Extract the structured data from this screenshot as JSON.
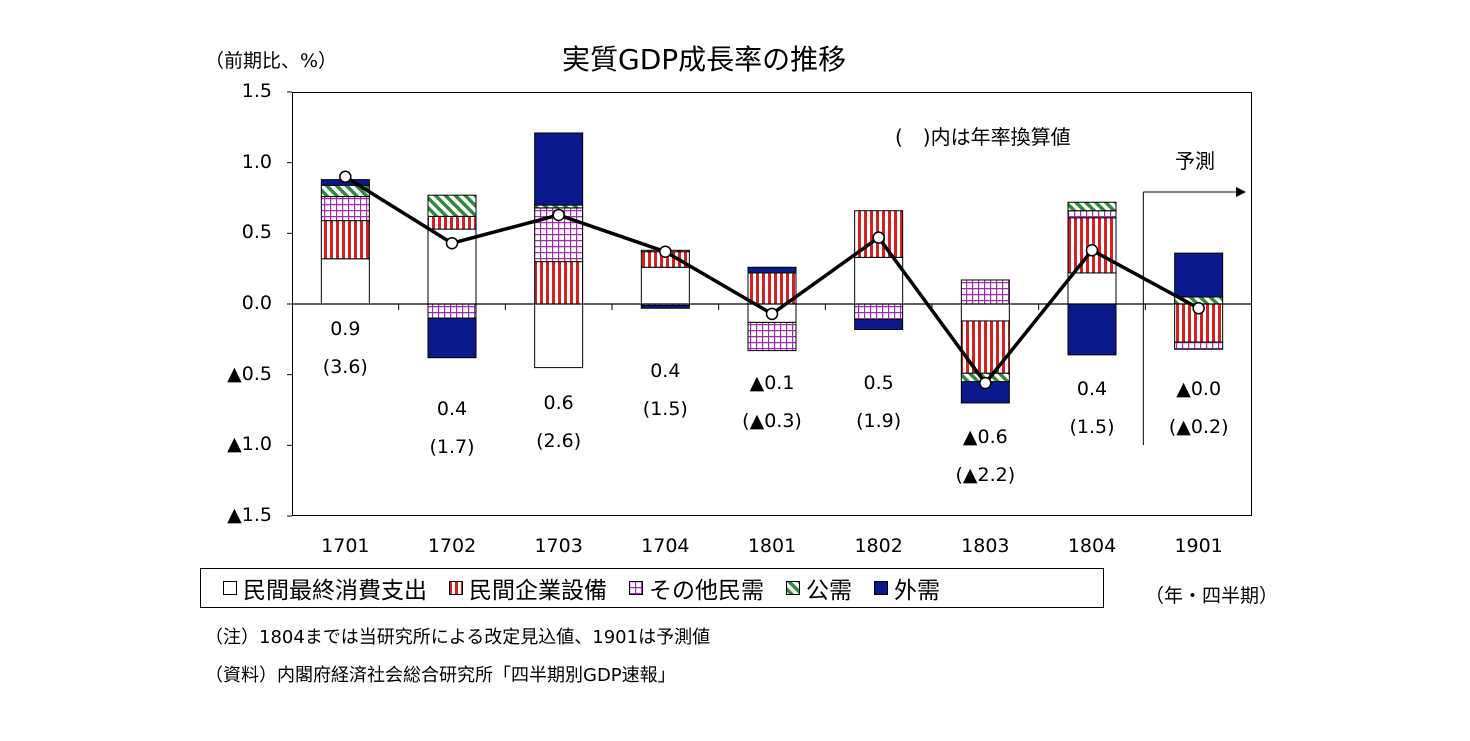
{
  "title": "実質GDP成長率の推移",
  "y_unit": "（前期比、%）",
  "annual_note": "(　)内は年率換算値",
  "forecast_label": "予測",
  "period_label": "（年・四半期）",
  "note_1": "（注）1804までは当研究所による改定見込値、1901は予測値",
  "note_2": "（資料）内閣府経済社会総合研究所「四半期別GDP速報」",
  "colors": {
    "consumption": "#ffffff",
    "investment": "#d62020",
    "other_private": "#9b2fae",
    "public": "#2e8b3e",
    "external": "#0a1a8c",
    "line": "#000000"
  },
  "chart_data": {
    "type": "bar",
    "subtype": "stacked bar with line",
    "title": "実質GDP成長率の推移",
    "ylabel": "（前期比、%）",
    "xlabel": "（年・四半期）",
    "ylim": [
      -1.5,
      1.5
    ],
    "yticks": [
      "1.5",
      "1.0",
      "0.5",
      "0.0",
      "▲0.5",
      "▲1.0",
      "▲1.5"
    ],
    "categories": [
      "1701",
      "1702",
      "1703",
      "1704",
      "1801",
      "1802",
      "1803",
      "1804",
      "1901"
    ],
    "series": [
      {
        "name": "民間最終消費支出",
        "values": [
          0.32,
          0.53,
          -0.45,
          0.26,
          -0.13,
          0.33,
          -0.12,
          0.22,
          0.0
        ],
        "pattern": "none"
      },
      {
        "name": "民間企業設備",
        "values": [
          0.27,
          0.09,
          0.3,
          0.11,
          0.22,
          0.33,
          -0.37,
          0.39,
          -0.27
        ],
        "pattern": "vstripe"
      },
      {
        "name": "その他民需",
        "values": [
          0.17,
          -0.1,
          0.38,
          -0.01,
          -0.2,
          -0.11,
          0.17,
          0.05,
          -0.05
        ],
        "pattern": "grid"
      },
      {
        "name": "公需",
        "values": [
          0.08,
          0.15,
          0.02,
          0.01,
          0.0,
          0.0,
          -0.06,
          0.06,
          0.05
        ],
        "pattern": "diag"
      },
      {
        "name": "外需",
        "values": [
          0.04,
          -0.28,
          0.51,
          -0.02,
          0.04,
          -0.07,
          -0.15,
          -0.36,
          0.31
        ],
        "pattern": "solid"
      }
    ],
    "line": {
      "name": "実質GDP成長率",
      "values": [
        0.9,
        0.43,
        0.63,
        0.37,
        -0.07,
        0.47,
        -0.56,
        0.38,
        -0.03
      ]
    },
    "data_labels": [
      {
        "qoq": "0.9",
        "annual": "(3.6)"
      },
      {
        "qoq": "0.4",
        "annual": "(1.7)"
      },
      {
        "qoq": "0.6",
        "annual": "(2.6)"
      },
      {
        "qoq": "0.4",
        "annual": "(1.5)"
      },
      {
        "qoq": "▲0.1",
        "annual": "(▲0.3)"
      },
      {
        "qoq": "0.5",
        "annual": "(1.9)"
      },
      {
        "qoq": "▲0.6",
        "annual": "(▲2.2)"
      },
      {
        "qoq": "0.4",
        "annual": "(1.5)"
      },
      {
        "qoq": "▲0.0",
        "annual": "(▲0.2)"
      }
    ],
    "legend": {
      "placement": "bottom",
      "entries": [
        "民間最終消費支出",
        "民間企業設備",
        "その他民需",
        "公需",
        "外需"
      ]
    },
    "grid": false
  }
}
